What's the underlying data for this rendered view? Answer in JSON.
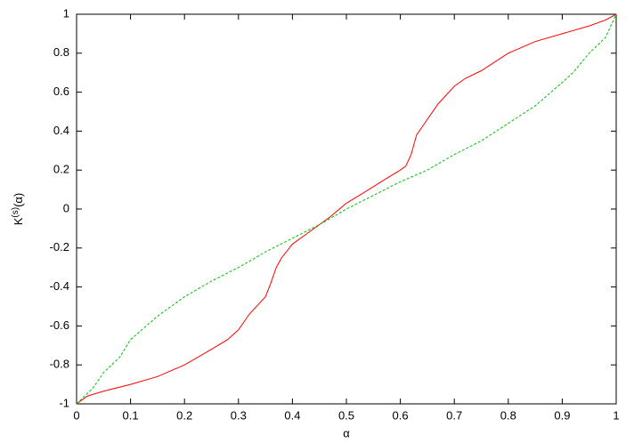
{
  "chart_data": {
    "type": "line",
    "x_label": "α",
    "y_label": {
      "base": "K",
      "sup": "(s)",
      "arg": "(α)"
    },
    "xlim": [
      0,
      1
    ],
    "xticks": [
      0,
      0.1,
      0.2,
      0.3,
      0.4,
      0.5,
      0.6,
      0.7,
      0.8,
      0.9,
      1
    ],
    "ylim": [
      -1,
      1
    ],
    "yticks": [
      -1,
      -0.8,
      -0.6,
      -0.4,
      -0.2,
      0,
      0.2,
      0.4,
      0.6,
      0.8,
      1
    ],
    "grid": false,
    "series": [
      {
        "color": "#ff0000",
        "dashed": false,
        "x": [
          0,
          0.02,
          0.05,
          0.1,
          0.15,
          0.2,
          0.25,
          0.28,
          0.3,
          0.32,
          0.35,
          0.36,
          0.37,
          0.38,
          0.4,
          0.43,
          0.45,
          0.47,
          0.5,
          0.53,
          0.57,
          0.6,
          0.61,
          0.62,
          0.63,
          0.65,
          0.67,
          0.7,
          0.72,
          0.75,
          0.8,
          0.85,
          0.9,
          0.95,
          0.98,
          1
        ],
        "values": [
          -1,
          -0.96,
          -0.935,
          -0.9,
          -0.86,
          -0.8,
          -0.72,
          -0.67,
          -0.62,
          -0.54,
          -0.45,
          -0.38,
          -0.3,
          -0.25,
          -0.18,
          -0.12,
          -0.08,
          -0.04,
          0.03,
          0.08,
          0.15,
          0.2,
          0.22,
          0.28,
          0.38,
          0.46,
          0.54,
          0.63,
          0.67,
          0.71,
          0.8,
          0.86,
          0.9,
          0.94,
          0.97,
          1
        ]
      },
      {
        "color": "#00c000",
        "dashed": true,
        "x": [
          0,
          0.03,
          0.05,
          0.08,
          0.1,
          0.15,
          0.2,
          0.25,
          0.3,
          0.35,
          0.4,
          0.45,
          0.5,
          0.55,
          0.6,
          0.65,
          0.7,
          0.75,
          0.8,
          0.85,
          0.9,
          0.92,
          0.95,
          0.98,
          1
        ],
        "values": [
          -1,
          -0.92,
          -0.84,
          -0.76,
          -0.67,
          -0.55,
          -0.45,
          -0.37,
          -0.3,
          -0.22,
          -0.15,
          -0.08,
          0,
          0.07,
          0.14,
          0.2,
          0.28,
          0.35,
          0.44,
          0.53,
          0.65,
          0.7,
          0.8,
          0.88,
          1
        ]
      }
    ]
  }
}
